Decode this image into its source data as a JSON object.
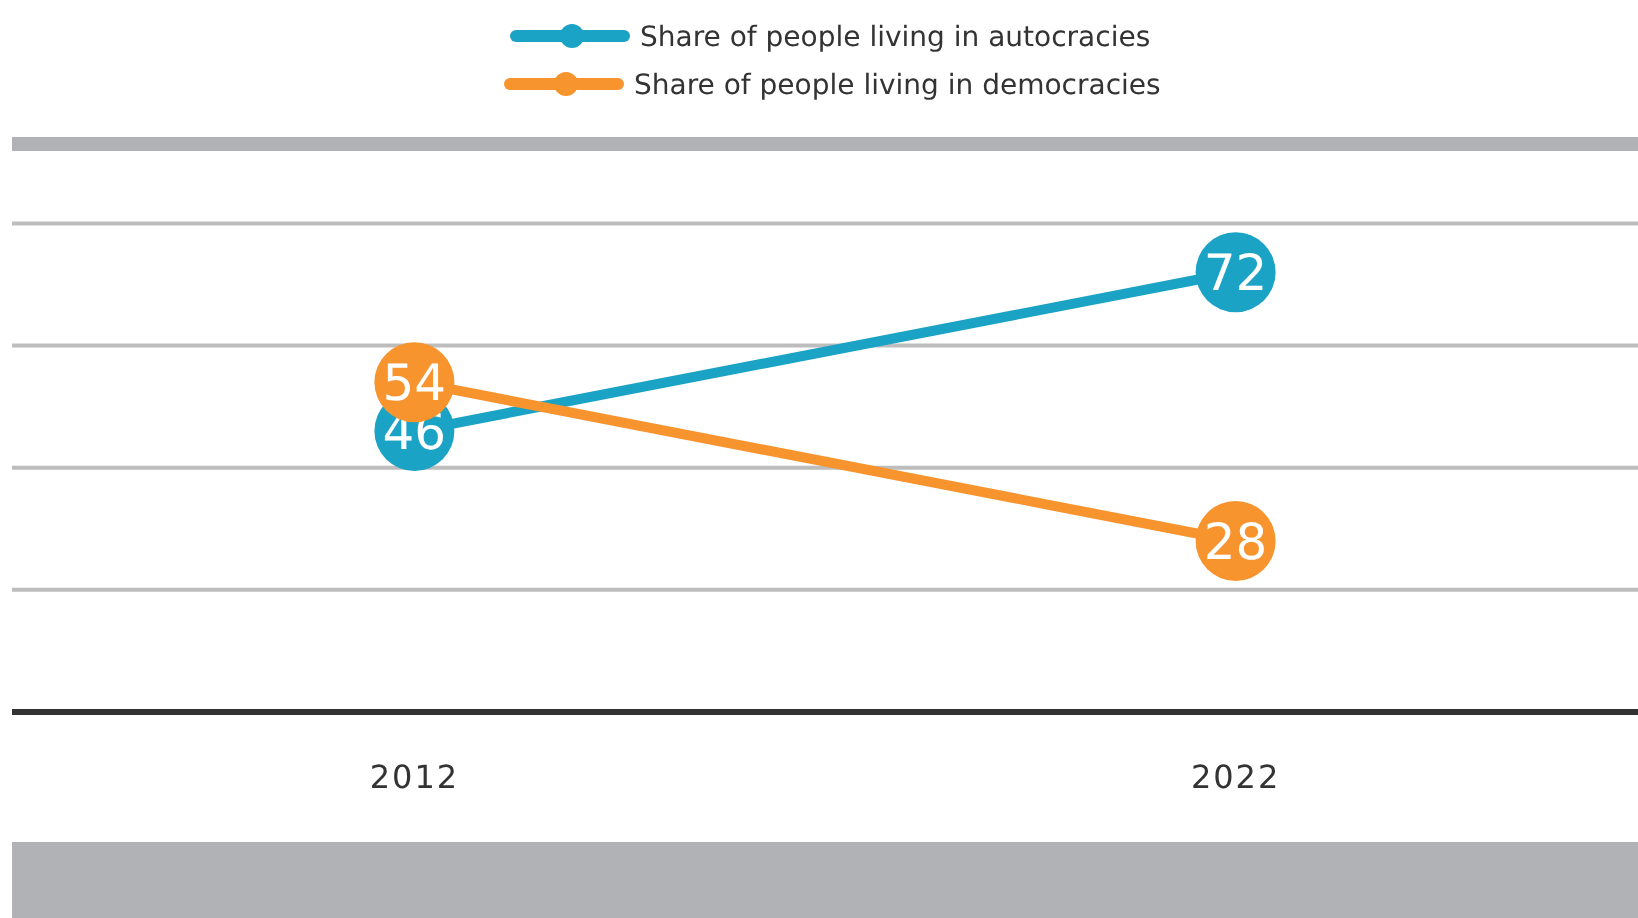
{
  "chart_data": {
    "type": "line",
    "categories": [
      "2012",
      "2022"
    ],
    "series": [
      {
        "name": "Share of people living in autocracies",
        "color": "#1ba3c6",
        "values": [
          46,
          72
        ]
      },
      {
        "name": "Share of people living in democracies",
        "color": "#f7942e",
        "values": [
          54,
          28
        ]
      }
    ],
    "ylim": [
      0,
      93
    ],
    "yticks": [
      {
        "value": 20,
        "label": null
      },
      {
        "value": 40,
        "label": null
      },
      {
        "value": 60,
        "label": null
      },
      {
        "value": 80,
        "label": null
      }
    ],
    "grid": "y",
    "tick_labels": "x",
    "data_labels": true,
    "marker": "circle",
    "line_style": "solid",
    "legend": "top"
  }
}
